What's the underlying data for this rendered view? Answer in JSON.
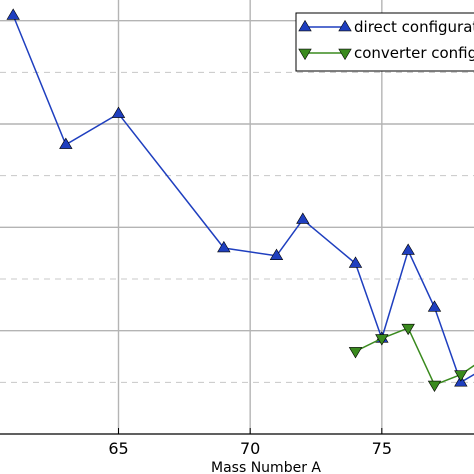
{
  "chart_data": {
    "type": "line",
    "title": "",
    "xlabel": "Mass Number A",
    "ylabel": "",
    "xlim": [
      60.5,
      78.5
    ],
    "ylim": [
      0,
      8.4
    ],
    "x_ticks": [
      65,
      70,
      75
    ],
    "x_tick_labels": [
      "65",
      "70",
      "75"
    ],
    "major_y_grid": [
      2,
      4,
      6,
      8
    ],
    "minor_y_grid": [
      1,
      3,
      5,
      7
    ],
    "grid": true,
    "legend_position": "top-right",
    "series": [
      {
        "name": "direct configuration",
        "color": "#1f3fbf",
        "marker": "triangle-up",
        "points": [
          {
            "x": 61,
            "y": 8.1
          },
          {
            "x": 63,
            "y": 5.6
          },
          {
            "x": 65,
            "y": 6.2
          },
          {
            "x": 69,
            "y": 3.6
          },
          {
            "x": 71,
            "y": 3.45
          },
          {
            "x": 72,
            "y": 4.15
          },
          {
            "x": 74,
            "y": 3.3
          },
          {
            "x": 75,
            "y": 1.85
          },
          {
            "x": 76,
            "y": 3.55
          },
          {
            "x": 77,
            "y": 2.45
          },
          {
            "x": 78,
            "y": 1.0
          },
          {
            "x": 79,
            "y": 1.3
          }
        ]
      },
      {
        "name": "converter configuration",
        "color": "#3a8a1e",
        "marker": "triangle-down",
        "points": [
          {
            "x": 74,
            "y": 1.6
          },
          {
            "x": 75,
            "y": 1.85
          },
          {
            "x": 76,
            "y": 2.05
          },
          {
            "x": 77,
            "y": 0.95
          },
          {
            "x": 78,
            "y": 1.15
          },
          {
            "x": 79,
            "y": 1.5
          }
        ]
      }
    ]
  }
}
